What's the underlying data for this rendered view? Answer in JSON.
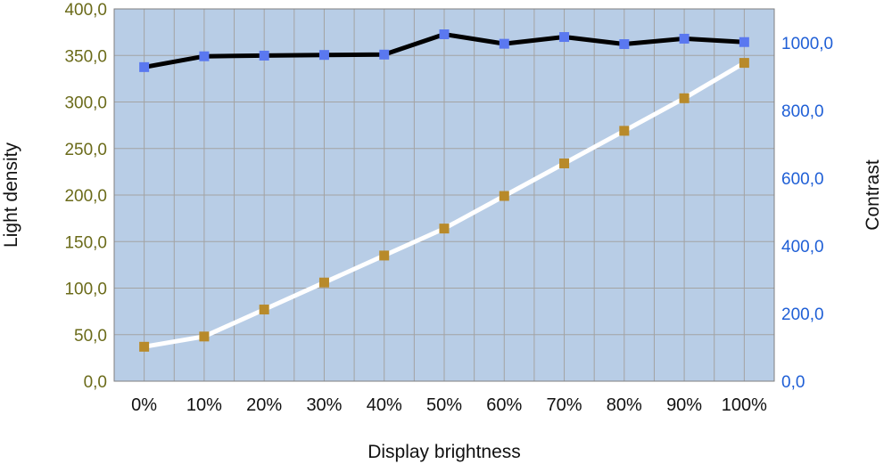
{
  "chart_data": {
    "type": "line",
    "xlabel": "Display brightness",
    "ylabel_left": "Light density",
    "ylabel_right": "Contrast",
    "categories": [
      "0%",
      "10%",
      "20%",
      "30%",
      "40%",
      "50%",
      "60%",
      "70%",
      "80%",
      "90%",
      "100%"
    ],
    "y_left": {
      "range": [
        0,
        400
      ],
      "ticks": [
        0,
        50,
        100,
        150,
        200,
        250,
        300,
        350,
        400
      ],
      "tick_labels": [
        "0,0",
        "50,0",
        "100,0",
        "150,0",
        "200,0",
        "250,0",
        "300,0",
        "350,0",
        "400,0"
      ],
      "color": "#6b6b1a"
    },
    "y_right": {
      "range": [
        0,
        1100
      ],
      "ticks": [
        0,
        200,
        400,
        600,
        800,
        1000
      ],
      "tick_labels": [
        "0,0",
        "200,0",
        "400,0",
        "600,0",
        "800,0",
        "1000,0"
      ],
      "color": "#1f5fd6"
    },
    "grid": true,
    "plot_background": "#b8cde6",
    "series": [
      {
        "axis": "right",
        "line_color": "#000000",
        "marker_color": "#5a78f0",
        "values": [
          928,
          960,
          962,
          964,
          965,
          1025,
          997,
          1017,
          996,
          1012,
          1002
        ]
      },
      {
        "axis": "left",
        "line_color": "#ffffff",
        "marker_color": "#b88a2a",
        "values": [
          37,
          48,
          77,
          106,
          135,
          164,
          199,
          234,
          269,
          304,
          342
        ]
      }
    ]
  }
}
